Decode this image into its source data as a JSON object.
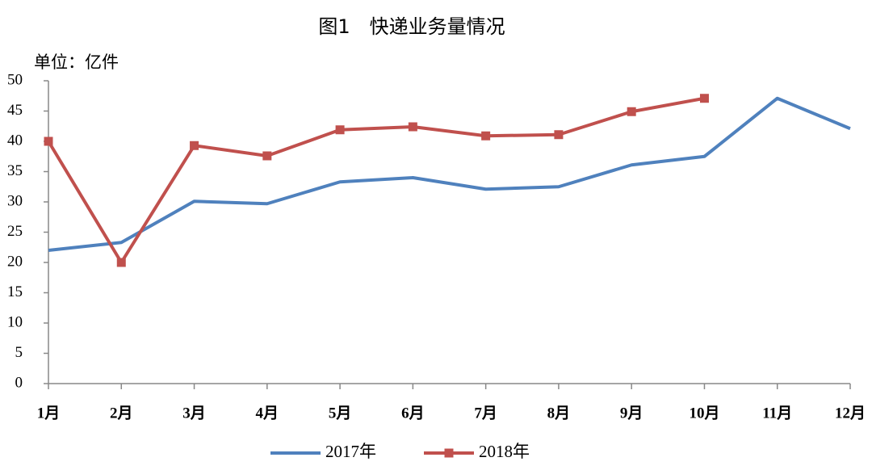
{
  "chart_data": {
    "type": "line",
    "title": "图1　快递业务量情况",
    "y_label": "单位：亿件",
    "categories": [
      "1月",
      "2月",
      "3月",
      "4月",
      "5月",
      "6月",
      "7月",
      "8月",
      "9月",
      "10月",
      "11月",
      "12月"
    ],
    "series": [
      {
        "name": "2017年",
        "color": "#4f81bd",
        "marker": false,
        "values": [
          22,
          23.3,
          30.1,
          29.7,
          33.3,
          34,
          32.1,
          32.5,
          36.1,
          37.5,
          47.1,
          42.1
        ]
      },
      {
        "name": "2018年",
        "color": "#c0504d",
        "marker": "square",
        "values": [
          40,
          20,
          39.3,
          37.6,
          41.9,
          42.4,
          40.9,
          41.1,
          44.9,
          47.1,
          null,
          null
        ]
      }
    ],
    "ylim": [
      0,
      50
    ],
    "yticks": [
      0,
      5,
      10,
      15,
      20,
      25,
      30,
      35,
      40,
      45,
      50
    ],
    "grid": false,
    "legend": "bottom"
  }
}
